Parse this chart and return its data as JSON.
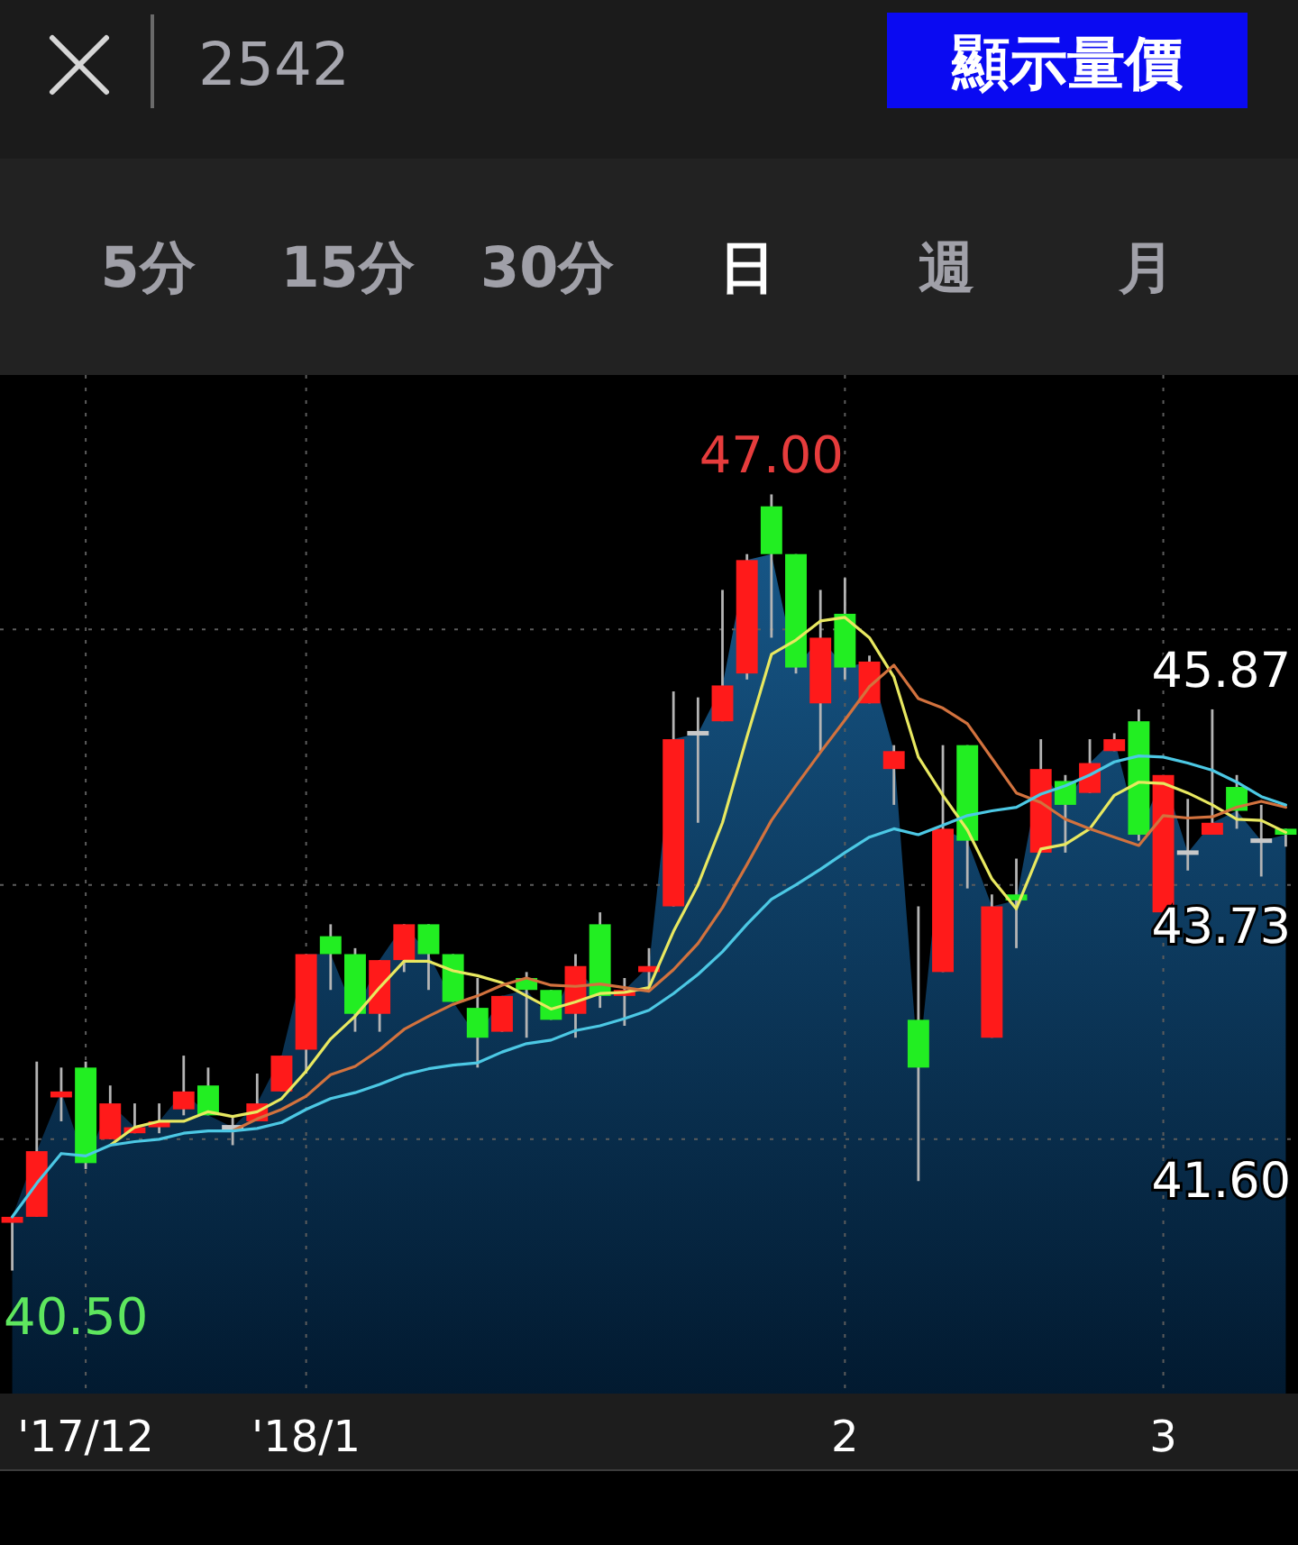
{
  "chart_data": {
    "type": "candlestick",
    "title": "2542",
    "annotations": [
      "顯示量價",
      "5分",
      "15分",
      "30分",
      "日",
      "週",
      "月",
      {
        "text": "47.00",
        "y": 47.0
      },
      "40.50"
    ],
    "categories": [
      null,
      null,
      null,
      "'17/12",
      null,
      null,
      null,
      null,
      null,
      null,
      null,
      null,
      "'18/1",
      null,
      null,
      null,
      null,
      null,
      null,
      null,
      null,
      null,
      null,
      null,
      null,
      null,
      null,
      null,
      null,
      null,
      null,
      null,
      null,
      null,
      "2",
      null,
      null,
      null,
      null,
      null,
      null,
      null,
      null,
      null,
      null,
      null,
      null,
      "3",
      null,
      null,
      null,
      null,
      null
    ],
    "ylim": [
      39.47,
      48.0
    ],
    "yticks": [
      {
        "value": 41.6,
        "label": "41.60"
      },
      43.73,
      45.87
    ],
    "grid": true,
    "ohlc": [
      [
        40.9,
        40.95,
        40.5,
        40.95
      ],
      [
        40.95,
        42.25,
        40.95,
        41.5
      ],
      [
        41.95,
        42.2,
        41.75,
        42.0
      ],
      [
        42.2,
        42.25,
        41.35,
        41.4
      ],
      [
        41.6,
        42.05,
        41.6,
        41.9
      ],
      [
        41.65,
        41.9,
        41.65,
        41.7
      ],
      [
        41.7,
        41.9,
        41.65,
        41.75
      ],
      [
        41.85,
        42.3,
        41.8,
        42.0
      ],
      [
        42.05,
        42.2,
        41.8,
        41.8
      ],
      [
        41.7,
        41.8,
        41.55,
        41.7
      ],
      [
        41.75,
        42.15,
        41.75,
        41.9
      ],
      [
        42.0,
        42.3,
        42.0,
        42.3
      ],
      [
        42.35,
        43.15,
        42.15,
        43.15
      ],
      [
        43.3,
        43.4,
        42.85,
        43.15
      ],
      [
        43.15,
        43.2,
        42.5,
        42.65
      ],
      [
        42.65,
        43.1,
        42.5,
        43.1
      ],
      [
        43.1,
        43.4,
        43.0,
        43.4
      ],
      [
        43.4,
        43.4,
        42.85,
        43.15
      ],
      [
        43.15,
        43.15,
        42.75,
        42.75
      ],
      [
        42.7,
        42.95,
        42.2,
        42.45
      ],
      [
        42.5,
        42.8,
        42.5,
        42.8
      ],
      [
        42.95,
        43.0,
        42.45,
        42.85
      ],
      [
        42.85,
        42.85,
        42.6,
        42.6
      ],
      [
        42.65,
        43.15,
        42.45,
        43.05
      ],
      [
        43.4,
        43.5,
        42.7,
        42.8
      ],
      [
        42.8,
        42.95,
        42.55,
        42.85
      ],
      [
        43.0,
        43.2,
        42.85,
        43.05
      ],
      [
        43.55,
        45.35,
        43.55,
        44.95
      ],
      [
        45.0,
        45.3,
        44.25,
        45.0
      ],
      [
        45.1,
        46.2,
        45.1,
        45.4
      ],
      [
        45.5,
        46.5,
        45.45,
        46.45
      ],
      [
        46.9,
        47.0,
        45.8,
        46.5
      ],
      [
        46.5,
        46.5,
        45.5,
        45.55
      ],
      [
        45.25,
        46.2,
        44.85,
        45.8
      ],
      [
        46.0,
        46.3,
        45.45,
        45.55
      ],
      [
        45.25,
        45.65,
        45.25,
        45.6
      ],
      [
        44.7,
        44.9,
        44.4,
        44.85
      ],
      [
        42.6,
        43.55,
        41.25,
        42.2
      ],
      [
        43.0,
        44.9,
        43.0,
        44.2
      ],
      [
        44.9,
        44.9,
        43.7,
        44.1
      ],
      [
        42.45,
        43.65,
        42.45,
        43.55
      ],
      [
        43.65,
        43.95,
        43.2,
        43.6
      ],
      [
        44.0,
        44.95,
        44.0,
        44.7
      ],
      [
        44.6,
        44.65,
        44.0,
        44.4
      ],
      [
        44.5,
        44.95,
        44.5,
        44.75
      ],
      [
        44.85,
        45.0,
        44.85,
        44.95
      ],
      [
        45.1,
        45.2,
        44.1,
        44.15
      ],
      [
        43.5,
        44.65,
        43.5,
        44.65
      ],
      [
        44.0,
        44.45,
        43.85,
        44.0
      ],
      [
        44.15,
        45.2,
        44.15,
        44.25
      ],
      [
        44.55,
        44.65,
        44.2,
        44.35
      ],
      [
        44.1,
        44.4,
        43.8,
        44.1
      ],
      [
        44.2,
        44.2,
        44.05,
        44.15
      ]
    ],
    "colors": [
      "#ff1a1a",
      "#ff1a1a",
      "#ff1a1a",
      "#22ee22",
      "#ff1a1a",
      "#ff1a1a",
      "#ff1a1a",
      "#ff1a1a",
      "#22ee22",
      "#c8c8c8",
      "#ff1a1a",
      "#ff1a1a",
      "#ff1a1a",
      "#22ee22",
      "#22ee22",
      "#ff1a1a",
      "#ff1a1a",
      "#22ee22",
      "#22ee22",
      "#22ee22",
      "#ff1a1a",
      "#22ee22",
      "#22ee22",
      "#ff1a1a",
      "#22ee22",
      "#ff1a1a",
      "#ff1a1a",
      "#ff1a1a",
      "#c8c8c8",
      "#ff1a1a",
      "#ff1a1a",
      "#22ee22",
      "#22ee22",
      "#ff1a1a",
      "#22ee22",
      "#ff1a1a",
      "#ff1a1a",
      "#22ee22",
      "#ff1a1a",
      "#22ee22",
      "#ff1a1a",
      "#22ee22",
      "#ff1a1a",
      "#22ee22",
      "#ff1a1a",
      "#ff1a1a",
      "#22ee22",
      "#ff1a1a",
      "#c8c8c8",
      "#ff1a1a",
      "#22ee22",
      "#c8c8c8",
      "#22ee22"
    ],
    "series": [
      {
        "type": "area",
        "color": "#165585",
        "values": [
          40.95,
          41.5,
          42.0,
          41.4,
          41.9,
          41.7,
          41.75,
          42.0,
          41.8,
          41.7,
          41.9,
          42.3,
          43.15,
          43.15,
          42.65,
          43.1,
          43.4,
          43.15,
          42.75,
          42.45,
          42.8,
          42.85,
          42.6,
          43.05,
          42.8,
          42.85,
          43.05,
          44.95,
          45.0,
          45.4,
          46.45,
          46.5,
          45.55,
          45.8,
          45.55,
          45.6,
          44.85,
          42.2,
          44.2,
          44.1,
          43.55,
          43.6,
          44.7,
          44.4,
          44.75,
          44.95,
          44.15,
          44.65,
          44.0,
          44.25,
          44.35,
          44.1,
          44.15
        ]
      },
      {
        "type": "line",
        "color": "#e8e860",
        "values": [
          null,
          null,
          null,
          null,
          41.55,
          41.7,
          41.75,
          41.75,
          41.83,
          41.79,
          41.83,
          41.94,
          42.17,
          42.44,
          42.63,
          42.87,
          43.09,
          43.09,
          43.01,
          42.97,
          42.91,
          42.8,
          42.69,
          42.75,
          42.82,
          42.83,
          42.87,
          43.34,
          43.73,
          44.25,
          44.97,
          45.66,
          45.78,
          45.94,
          45.97,
          45.8,
          45.47,
          44.8,
          44.48,
          44.19,
          43.78,
          43.53,
          44.03,
          44.07,
          44.2,
          44.48,
          44.59,
          44.58,
          44.5,
          44.4,
          44.28,
          44.27,
          44.17
        ]
      },
      {
        "type": "line",
        "color": "#d2723e",
        "values": [
          null,
          null,
          null,
          null,
          null,
          null,
          null,
          null,
          null,
          41.67,
          41.77,
          41.85,
          41.96,
          42.14,
          42.21,
          42.35,
          42.52,
          42.63,
          42.73,
          42.8,
          42.89,
          42.95,
          42.89,
          42.88,
          42.9,
          42.87,
          42.84,
          43.02,
          43.24,
          43.54,
          43.9,
          44.27,
          44.56,
          44.84,
          45.11,
          45.39,
          45.57,
          45.29,
          45.21,
          45.08,
          44.79,
          44.5,
          44.42,
          44.28,
          44.2,
          44.13,
          44.06,
          44.31,
          44.29,
          44.3,
          44.38,
          44.43,
          44.38
        ]
      },
      {
        "type": "line",
        "color": "#4cc8e4",
        "values": [
          40.95,
          41.23,
          41.48,
          41.46,
          41.55,
          41.58,
          41.6,
          41.65,
          41.67,
          41.67,
          41.69,
          41.74,
          41.85,
          41.94,
          41.99,
          42.06,
          42.14,
          42.19,
          42.22,
          42.24,
          42.33,
          42.4,
          42.43,
          42.51,
          42.55,
          42.61,
          42.68,
          42.82,
          42.98,
          43.17,
          43.4,
          43.61,
          43.73,
          43.86,
          44.0,
          44.13,
          44.2,
          44.15,
          44.23,
          44.31,
          44.35,
          44.38,
          44.49,
          44.56,
          44.65,
          44.76,
          44.81,
          44.8,
          44.75,
          44.69,
          44.59,
          44.47,
          44.4
        ]
      }
    ]
  }
}
